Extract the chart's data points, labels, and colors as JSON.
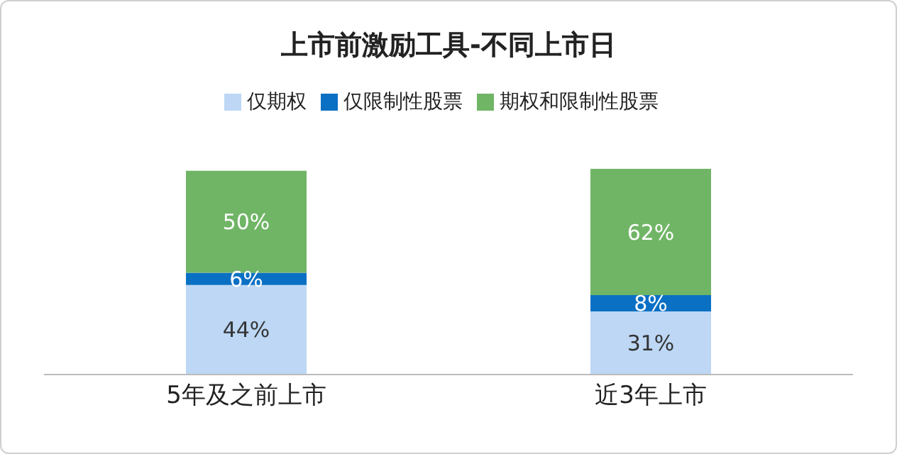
{
  "chart_data": {
    "type": "bar",
    "title": "上市前激励工具-不同上市日",
    "categories": [
      "5年及之前上市",
      "近3年上市"
    ],
    "stacked": true,
    "legend": "top",
    "grid": false,
    "tick_labels": "x",
    "series": [
      {
        "name": "仅期权",
        "color": "#bdd7f5",
        "values": [
          44,
          31
        ],
        "value_labels": [
          "44%",
          "31%"
        ]
      },
      {
        "name": "仅限制性股票",
        "color": "#0a70c4",
        "values": [
          6,
          8
        ],
        "value_labels": [
          "6%",
          "8%"
        ]
      },
      {
        "name": "期权和限制性股票",
        "color": "#70b566",
        "values": [
          50,
          62
        ],
        "value_labels": [
          "50%",
          "62%"
        ]
      }
    ]
  }
}
